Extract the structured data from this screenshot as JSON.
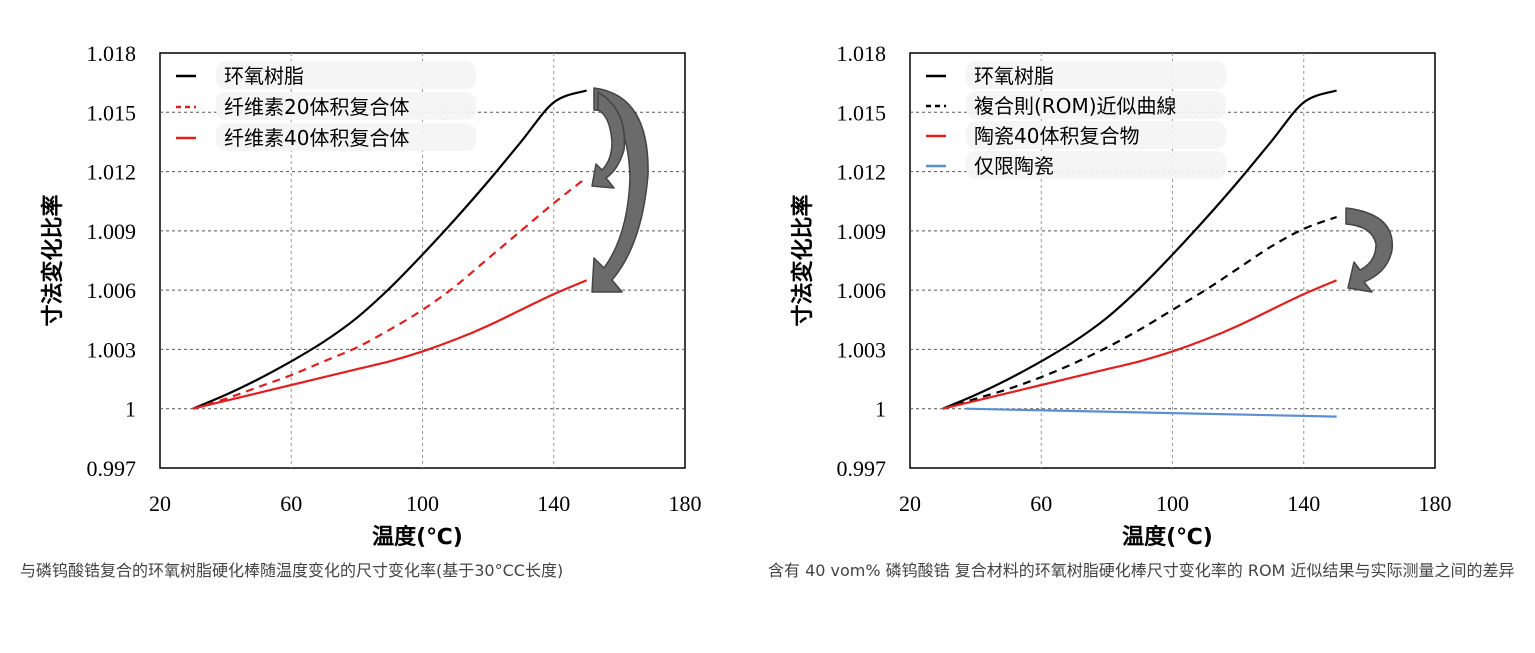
{
  "chart_data": [
    {
      "type": "line",
      "xlabel": "温度(℃)",
      "ylabel": "寸法変化比率",
      "xlim": [
        20,
        180
      ],
      "ylim": [
        0.997,
        1.018
      ],
      "xticks": [
        "20",
        "60",
        "100",
        "140",
        "180"
      ],
      "yticks": [
        "0.997",
        "1",
        "1.003",
        "1.006",
        "1.009",
        "1.012",
        "1.015",
        "1.018"
      ],
      "grid": true,
      "legend_position": "top-left",
      "series": [
        {
          "name": "环氧树脂",
          "color": "#000000",
          "dash": false,
          "x": [
            30,
            40,
            50,
            60,
            70,
            80,
            90,
            100,
            110,
            120,
            130,
            140,
            150
          ],
          "y": [
            1.0,
            1.0007,
            1.0015,
            1.0024,
            1.0034,
            1.0046,
            1.0061,
            1.0078,
            1.0096,
            1.0115,
            1.0135,
            1.0155,
            1.0161
          ]
        },
        {
          "name": "纤维素20体积复合体",
          "color": "#e02020",
          "dash": true,
          "x": [
            30,
            40,
            50,
            60,
            70,
            80,
            90,
            100,
            110,
            120,
            130,
            140,
            150
          ],
          "y": [
            1.0,
            1.0005,
            1.0011,
            1.0017,
            1.0024,
            1.0031,
            1.004,
            1.005,
            1.0062,
            1.0076,
            1.009,
            1.0104,
            1.0117
          ]
        },
        {
          "name": "纤维素40体积复合体",
          "color": "#e02020",
          "dash": false,
          "x": [
            30,
            40,
            50,
            60,
            70,
            80,
            90,
            100,
            110,
            120,
            130,
            140,
            150
          ],
          "y": [
            1.0,
            1.0004,
            1.0008,
            1.0012,
            1.0016,
            1.002,
            1.0024,
            1.0029,
            1.0035,
            1.0042,
            1.005,
            1.0058,
            1.0065
          ]
        }
      ]
    },
    {
      "type": "line",
      "xlabel": "温度(℃)",
      "ylabel": "寸法変化比率",
      "xlim": [
        20,
        180
      ],
      "ylim": [
        0.997,
        1.018
      ],
      "xticks": [
        "20",
        "60",
        "100",
        "140",
        "180"
      ],
      "yticks": [
        "0.997",
        "1",
        "1.003",
        "1.006",
        "1.009",
        "1.012",
        "1.015",
        "1.018"
      ],
      "grid": true,
      "legend_position": "top-left",
      "series": [
        {
          "name": "环氧树脂",
          "color": "#000000",
          "dash": false,
          "x": [
            30,
            40,
            50,
            60,
            70,
            80,
            90,
            100,
            110,
            120,
            130,
            140,
            150
          ],
          "y": [
            1.0,
            1.0007,
            1.0015,
            1.0024,
            1.0034,
            1.0046,
            1.0061,
            1.0078,
            1.0096,
            1.0115,
            1.0135,
            1.0155,
            1.0161
          ]
        },
        {
          "name": "複合則(ROM)近似曲線",
          "color": "#000000",
          "dash": true,
          "x": [
            30,
            40,
            50,
            60,
            70,
            80,
            90,
            100,
            110,
            120,
            130,
            140,
            150
          ],
          "y": [
            1.0,
            1.0005,
            1.001,
            1.0016,
            1.0023,
            1.0031,
            1.004,
            1.005,
            1.006,
            1.0071,
            1.0082,
            1.0091,
            1.0097
          ]
        },
        {
          "name": "陶瓷40体积复合物",
          "color": "#e02020",
          "dash": false,
          "x": [
            30,
            40,
            50,
            60,
            70,
            80,
            90,
            100,
            110,
            120,
            130,
            140,
            150
          ],
          "y": [
            1.0,
            1.0004,
            1.0008,
            1.0012,
            1.0016,
            1.002,
            1.0024,
            1.0029,
            1.0035,
            1.0042,
            1.005,
            1.0058,
            1.0065
          ]
        },
        {
          "name": "仅限陶瓷",
          "color": "#5b8fd4",
          "dash": false,
          "x": [
            37,
            150
          ],
          "y": [
            1.0,
            0.9996
          ]
        }
      ]
    }
  ],
  "captions": {
    "left": "与磷钨酸锆复合的环氧树脂硬化棒随温度变化的尺寸变化率(基于30°CC长度)",
    "right": "含有 40 vom% 磷钨酸锆 复合材料的环氧树脂硬化棒尺寸变化率的 ROM 近似结果与实际测量之间的差异"
  },
  "colors": {
    "black": "#000000",
    "red": "#e02020",
    "blue": "#5b8fd4",
    "arrow": "#6b6b6b",
    "grid": "#9a9a9a"
  }
}
